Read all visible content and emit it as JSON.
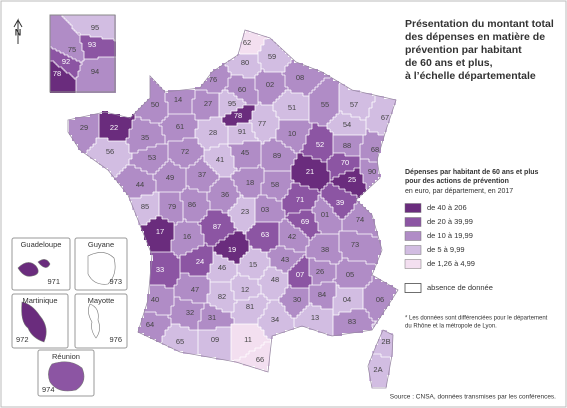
{
  "title": [
    "Présentation du montant total",
    "des dépenses en matière de",
    "prévention par habitant",
    "de 60 ans et plus,",
    "à l’échelle départementale"
  ],
  "north": "N",
  "legend": {
    "heading": [
      "Dépenses par habitant de 60 ans et plus",
      "pour des actions de prévention"
    ],
    "subheading": "en euro, par département, en 2017",
    "classes": [
      {
        "label": "de 40 à 206",
        "color": "#6a2c7d"
      },
      {
        "label": "de 20 à 39,99",
        "color": "#8c55a3"
      },
      {
        "label": "de 10 à 19,99",
        "color": "#b08cc6"
      },
      {
        "label": "de 5 à 9,99",
        "color": "#d2bde2"
      },
      {
        "label": "de 1,26 à 4,99",
        "color": "#f3dff0"
      }
    ],
    "no_data": {
      "label": "absence de donnée",
      "color": "#ffffff"
    }
  },
  "note": [
    "* Les données sont différenciées pour le département",
    "du Rhône et la métropole de Lyon."
  ],
  "source": "Source : CNSA, données transmises par les conférences.",
  "departments": [
    {
      "code": "29",
      "class": 2
    },
    {
      "code": "22",
      "class": 0
    },
    {
      "code": "56",
      "class": 3
    },
    {
      "code": "35",
      "class": 2
    },
    {
      "code": "50",
      "class": 2
    },
    {
      "code": "14",
      "class": 2
    },
    {
      "code": "61",
      "class": 2
    },
    {
      "code": "53",
      "class": 2
    },
    {
      "code": "72",
      "class": 2
    },
    {
      "code": "44",
      "class": 2
    },
    {
      "code": "49",
      "class": 2
    },
    {
      "code": "85",
      "class": 3
    },
    {
      "code": "79",
      "class": 2
    },
    {
      "code": "86",
      "class": 2
    },
    {
      "code": "37",
      "class": 2
    },
    {
      "code": "41",
      "class": 3
    },
    {
      "code": "28",
      "class": 3
    },
    {
      "code": "27",
      "class": 2
    },
    {
      "code": "76",
      "class": 2
    },
    {
      "code": "80",
      "class": 3
    },
    {
      "code": "62",
      "class": 4
    },
    {
      "code": "59",
      "class": 3
    },
    {
      "code": "02",
      "class": 2
    },
    {
      "code": "60",
      "class": 2
    },
    {
      "code": "95",
      "class": 3
    },
    {
      "code": "78",
      "class": 0
    },
    {
      "code": "91",
      "class": 3
    },
    {
      "code": "77",
      "class": 3
    },
    {
      "code": "45",
      "class": 2
    },
    {
      "code": "89",
      "class": 2
    },
    {
      "code": "10",
      "class": 2
    },
    {
      "code": "51",
      "class": 3
    },
    {
      "code": "08",
      "class": 2
    },
    {
      "code": "55",
      "class": 2
    },
    {
      "code": "57",
      "class": 3
    },
    {
      "code": "54",
      "class": 3
    },
    {
      "code": "67",
      "class": 3
    },
    {
      "code": "88",
      "class": 2
    },
    {
      "code": "68",
      "class": 2
    },
    {
      "code": "52",
      "class": 1
    },
    {
      "code": "70",
      "class": 1
    },
    {
      "code": "21",
      "class": 0
    },
    {
      "code": "25",
      "class": 0
    },
    {
      "code": "90",
      "class": 2
    },
    {
      "code": "39",
      "class": 1
    },
    {
      "code": "71",
      "class": 1
    },
    {
      "code": "58",
      "class": 2
    },
    {
      "code": "18",
      "class": 2
    },
    {
      "code": "36",
      "class": 2
    },
    {
      "code": "17",
      "class": 0
    },
    {
      "code": "16",
      "class": 2
    },
    {
      "code": "87",
      "class": 1
    },
    {
      "code": "23",
      "class": 3
    },
    {
      "code": "03",
      "class": 2
    },
    {
      "code": "19",
      "class": 0
    },
    {
      "code": "63",
      "class": 1
    },
    {
      "code": "42",
      "class": 2
    },
    {
      "code": "69",
      "class": 1
    },
    {
      "code": "01",
      "class": 2
    },
    {
      "code": "74",
      "class": 2
    },
    {
      "code": "73",
      "class": 2
    },
    {
      "code": "38",
      "class": 2
    },
    {
      "code": "15",
      "class": 3
    },
    {
      "code": "43",
      "class": 2
    },
    {
      "code": "07",
      "class": 1
    },
    {
      "code": "26",
      "class": 2
    },
    {
      "code": "05",
      "class": 2
    },
    {
      "code": "04",
      "class": 3
    },
    {
      "code": "06",
      "class": 2
    },
    {
      "code": "83",
      "class": 2
    },
    {
      "code": "84",
      "class": 2
    },
    {
      "code": "13",
      "class": 3
    },
    {
      "code": "30",
      "class": 2
    },
    {
      "code": "48",
      "class": 3
    },
    {
      "code": "12",
      "class": 3
    },
    {
      "code": "46",
      "class": 3
    },
    {
      "code": "24",
      "class": 1
    },
    {
      "code": "33",
      "class": 1
    },
    {
      "code": "47",
      "class": 2
    },
    {
      "code": "40",
      "class": 2
    },
    {
      "code": "82",
      "class": 3
    },
    {
      "code": "81",
      "class": 3
    },
    {
      "code": "34",
      "class": 3
    },
    {
      "code": "11",
      "class": 4
    },
    {
      "code": "66",
      "class": 4
    },
    {
      "code": "09",
      "class": 3
    },
    {
      "code": "31",
      "class": 2
    },
    {
      "code": "32",
      "class": 2
    },
    {
      "code": "65",
      "class": 3
    },
    {
      "code": "64",
      "class": 2
    },
    {
      "code": "2B",
      "class": 3
    },
    {
      "code": "2A",
      "class": 3
    }
  ],
  "idf_inset": [
    {
      "code": "95",
      "class": 3
    },
    {
      "code": "93",
      "class": 1
    },
    {
      "code": "75",
      "class": 2
    },
    {
      "code": "92",
      "class": 1
    },
    {
      "code": "94",
      "class": 2
    },
    {
      "code": "78",
      "class": 0
    }
  ],
  "overseas": [
    {
      "name": "Guadeloupe",
      "code": "971",
      "class": 0
    },
    {
      "name": "Guyane",
      "code": "973",
      "class": null
    },
    {
      "name": "Martinique",
      "code": "972",
      "class": 0
    },
    {
      "name": "Mayotte",
      "code": "976",
      "class": null
    },
    {
      "name": "Réunion",
      "code": "974",
      "class": 1
    }
  ]
}
